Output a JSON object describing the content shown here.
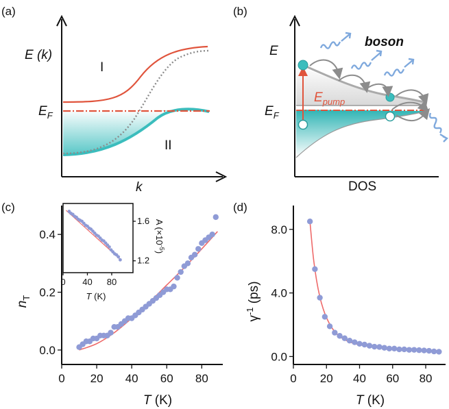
{
  "colors": {
    "red": "#e0543c",
    "teal": "#3bbdbd",
    "teal_light": "#bfe7e6",
    "dot": "#8f9bd6",
    "fit": "#ee6a6a",
    "boson": "#7fa9dd",
    "gray": "#8c8c8c"
  },
  "panel_a": {
    "label": "(a)",
    "y_label": "E (k)",
    "ef_label": "E",
    "ef_sub": "F",
    "x_label": "k",
    "band_upper": "I",
    "band_lower": "II"
  },
  "panel_b": {
    "label": "(b)",
    "y_label": "E",
    "ef_label": "E",
    "ef_sub": "F",
    "pump_label": "E",
    "pump_sub": "pump",
    "boson_label": "boson",
    "x_label": "DOS"
  },
  "chart_data": [
    {
      "id": "c",
      "type": "scatter",
      "panel_label": "(c)",
      "xlabel_italic": "T",
      "xlabel_unit": " (K)",
      "ylabel": "n",
      "ylabel_sub": "T",
      "xlim": [
        0,
        92
      ],
      "ylim": [
        -0.05,
        0.5
      ],
      "xticks": [
        "0",
        "20",
        "40",
        "60",
        "80"
      ],
      "xtick_values": [
        0,
        20,
        40,
        60,
        80
      ],
      "yticks": [
        "0.0",
        "0.2",
        "0.4"
      ],
      "ytick_values": [
        0.0,
        0.2,
        0.4
      ],
      "grid": false,
      "series": [
        {
          "x": [
            10,
            12,
            14,
            16,
            18,
            20,
            22,
            24,
            26,
            28,
            30,
            32,
            34,
            36,
            38,
            40,
            42,
            44,
            46,
            48,
            50,
            52,
            54,
            56,
            58,
            60,
            62,
            64,
            66,
            68,
            70,
            72,
            74,
            76,
            78,
            80,
            82,
            84,
            86,
            88
          ],
          "y": [
            0.01,
            0.02,
            0.03,
            0.03,
            0.04,
            0.04,
            0.05,
            0.05,
            0.05,
            0.06,
            0.08,
            0.08,
            0.09,
            0.1,
            0.11,
            0.11,
            0.12,
            0.13,
            0.14,
            0.15,
            0.16,
            0.17,
            0.18,
            0.19,
            0.2,
            0.21,
            0.21,
            0.22,
            0.25,
            0.27,
            0.29,
            0.3,
            0.32,
            0.33,
            0.35,
            0.37,
            0.38,
            0.39,
            0.4,
            0.46
          ]
        }
      ],
      "fit": {
        "x": [
          10,
          20,
          30,
          40,
          50,
          60,
          70,
          80,
          89
        ],
        "y": [
          0.0,
          0.022,
          0.06,
          0.11,
          0.165,
          0.225,
          0.285,
          0.35,
          0.41
        ]
      },
      "inset": {
        "type": "scatter",
        "xlabel_italic": "T",
        "xlabel_unit": " (K)",
        "ylabel": "A (×10",
        "ylabel_sup": "-5",
        "ylabel_close": ")",
        "xlim": [
          0,
          115
        ],
        "ylim": [
          1.08,
          1.78
        ],
        "xticks": [
          "0",
          "40",
          "80"
        ],
        "xtick_values": [
          0,
          40,
          80
        ],
        "yticks": [
          "1.2",
          "1.6"
        ],
        "ytick_values": [
          1.2,
          1.6
        ],
        "x": [
          10,
          13,
          16,
          19,
          22,
          25,
          28,
          31,
          34,
          37,
          40,
          43,
          46,
          49,
          52,
          55,
          58,
          61,
          64,
          67,
          70,
          73,
          76,
          79,
          82,
          85,
          88,
          91,
          94
        ],
        "y": [
          1.7,
          1.68,
          1.67,
          1.65,
          1.64,
          1.62,
          1.61,
          1.6,
          1.58,
          1.56,
          1.55,
          1.53,
          1.52,
          1.5,
          1.48,
          1.46,
          1.45,
          1.43,
          1.41,
          1.4,
          1.38,
          1.36,
          1.34,
          1.31,
          1.29,
          1.27,
          1.26,
          1.24,
          1.21
        ],
        "fit": {
          "x": [
            5,
            95
          ],
          "y": [
            1.71,
            1.21
          ]
        }
      }
    },
    {
      "id": "d",
      "type": "scatter",
      "panel_label": "(d)",
      "xlabel_italic": "T",
      "xlabel_unit": " (K)",
      "ylabel": "γ",
      "ylabel_sup": "-1",
      "ylabel_unit": " (ps)",
      "xlim": [
        0,
        92
      ],
      "ylim": [
        -0.5,
        9.5
      ],
      "xticks": [
        "0",
        "20",
        "40",
        "60",
        "80"
      ],
      "xtick_values": [
        0,
        20,
        40,
        60,
        80
      ],
      "yticks": [
        "0.0",
        "4.0",
        "8.0"
      ],
      "ytick_values": [
        0.0,
        4.0,
        8.0
      ],
      "grid": false,
      "series": [
        {
          "x": [
            10,
            13,
            16,
            19,
            22,
            25,
            28,
            31,
            34,
            37,
            40,
            43,
            46,
            49,
            52,
            55,
            58,
            61,
            64,
            67,
            70,
            73,
            76,
            79,
            82,
            85,
            88
          ],
          "y": [
            8.5,
            5.5,
            3.7,
            2.5,
            1.9,
            1.5,
            1.3,
            1.15,
            1.0,
            0.9,
            0.8,
            0.75,
            0.68,
            0.62,
            0.6,
            0.55,
            0.5,
            0.5,
            0.45,
            0.45,
            0.42,
            0.42,
            0.4,
            0.38,
            0.36,
            0.32,
            0.3
          ]
        }
      ],
      "fit": {
        "x": [
          10,
          12,
          14,
          16,
          18,
          20,
          23,
          26,
          30,
          35,
          40,
          50,
          60,
          70,
          80,
          89
        ],
        "y": [
          8.5,
          6.3,
          4.8,
          3.75,
          3.0,
          2.45,
          1.85,
          1.45,
          1.12,
          0.88,
          0.74,
          0.57,
          0.48,
          0.43,
          0.4,
          0.37
        ]
      }
    }
  ]
}
